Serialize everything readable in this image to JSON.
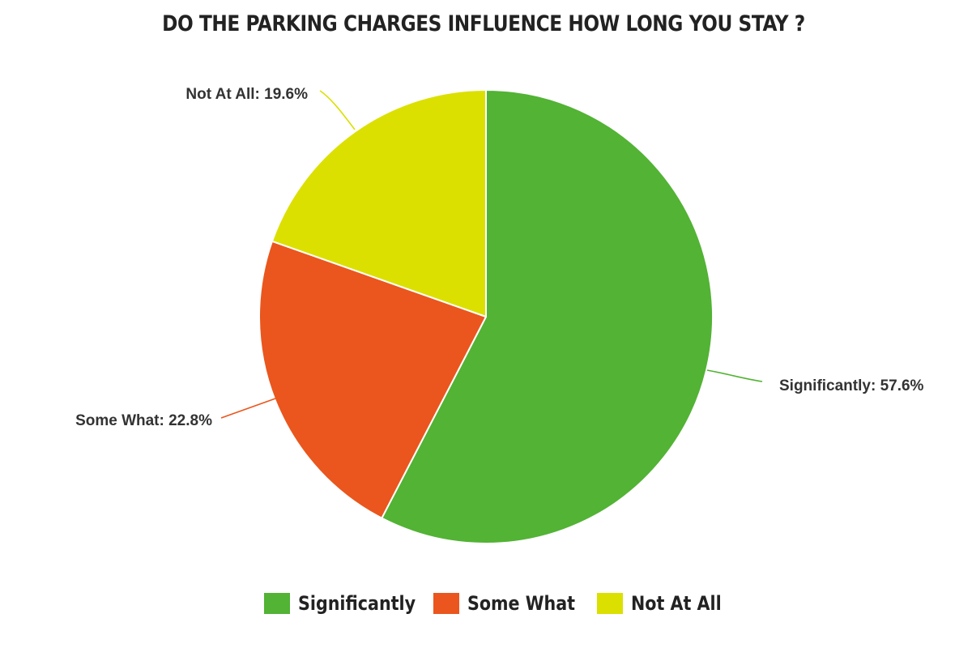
{
  "chart_data": {
    "type": "pie",
    "title": "DO THE PARKING CHARGES INFLUENCE HOW LONG YOU STAY ?",
    "categories": [
      "Significantly",
      "Some What",
      "Not At All"
    ],
    "values": [
      57.6,
      22.8,
      19.6
    ],
    "slice_labels": [
      "Significantly: 57.6%",
      "Some What: 22.8%",
      "Not At All: 19.6%"
    ],
    "colors": [
      "#52b334",
      "#ea561d",
      "#dbe000"
    ],
    "start": "12 o'clock",
    "direction": "clockwise",
    "legend": {
      "placement": "bottom",
      "entries": [
        "Significantly",
        "Some What",
        "Not At All"
      ]
    }
  }
}
